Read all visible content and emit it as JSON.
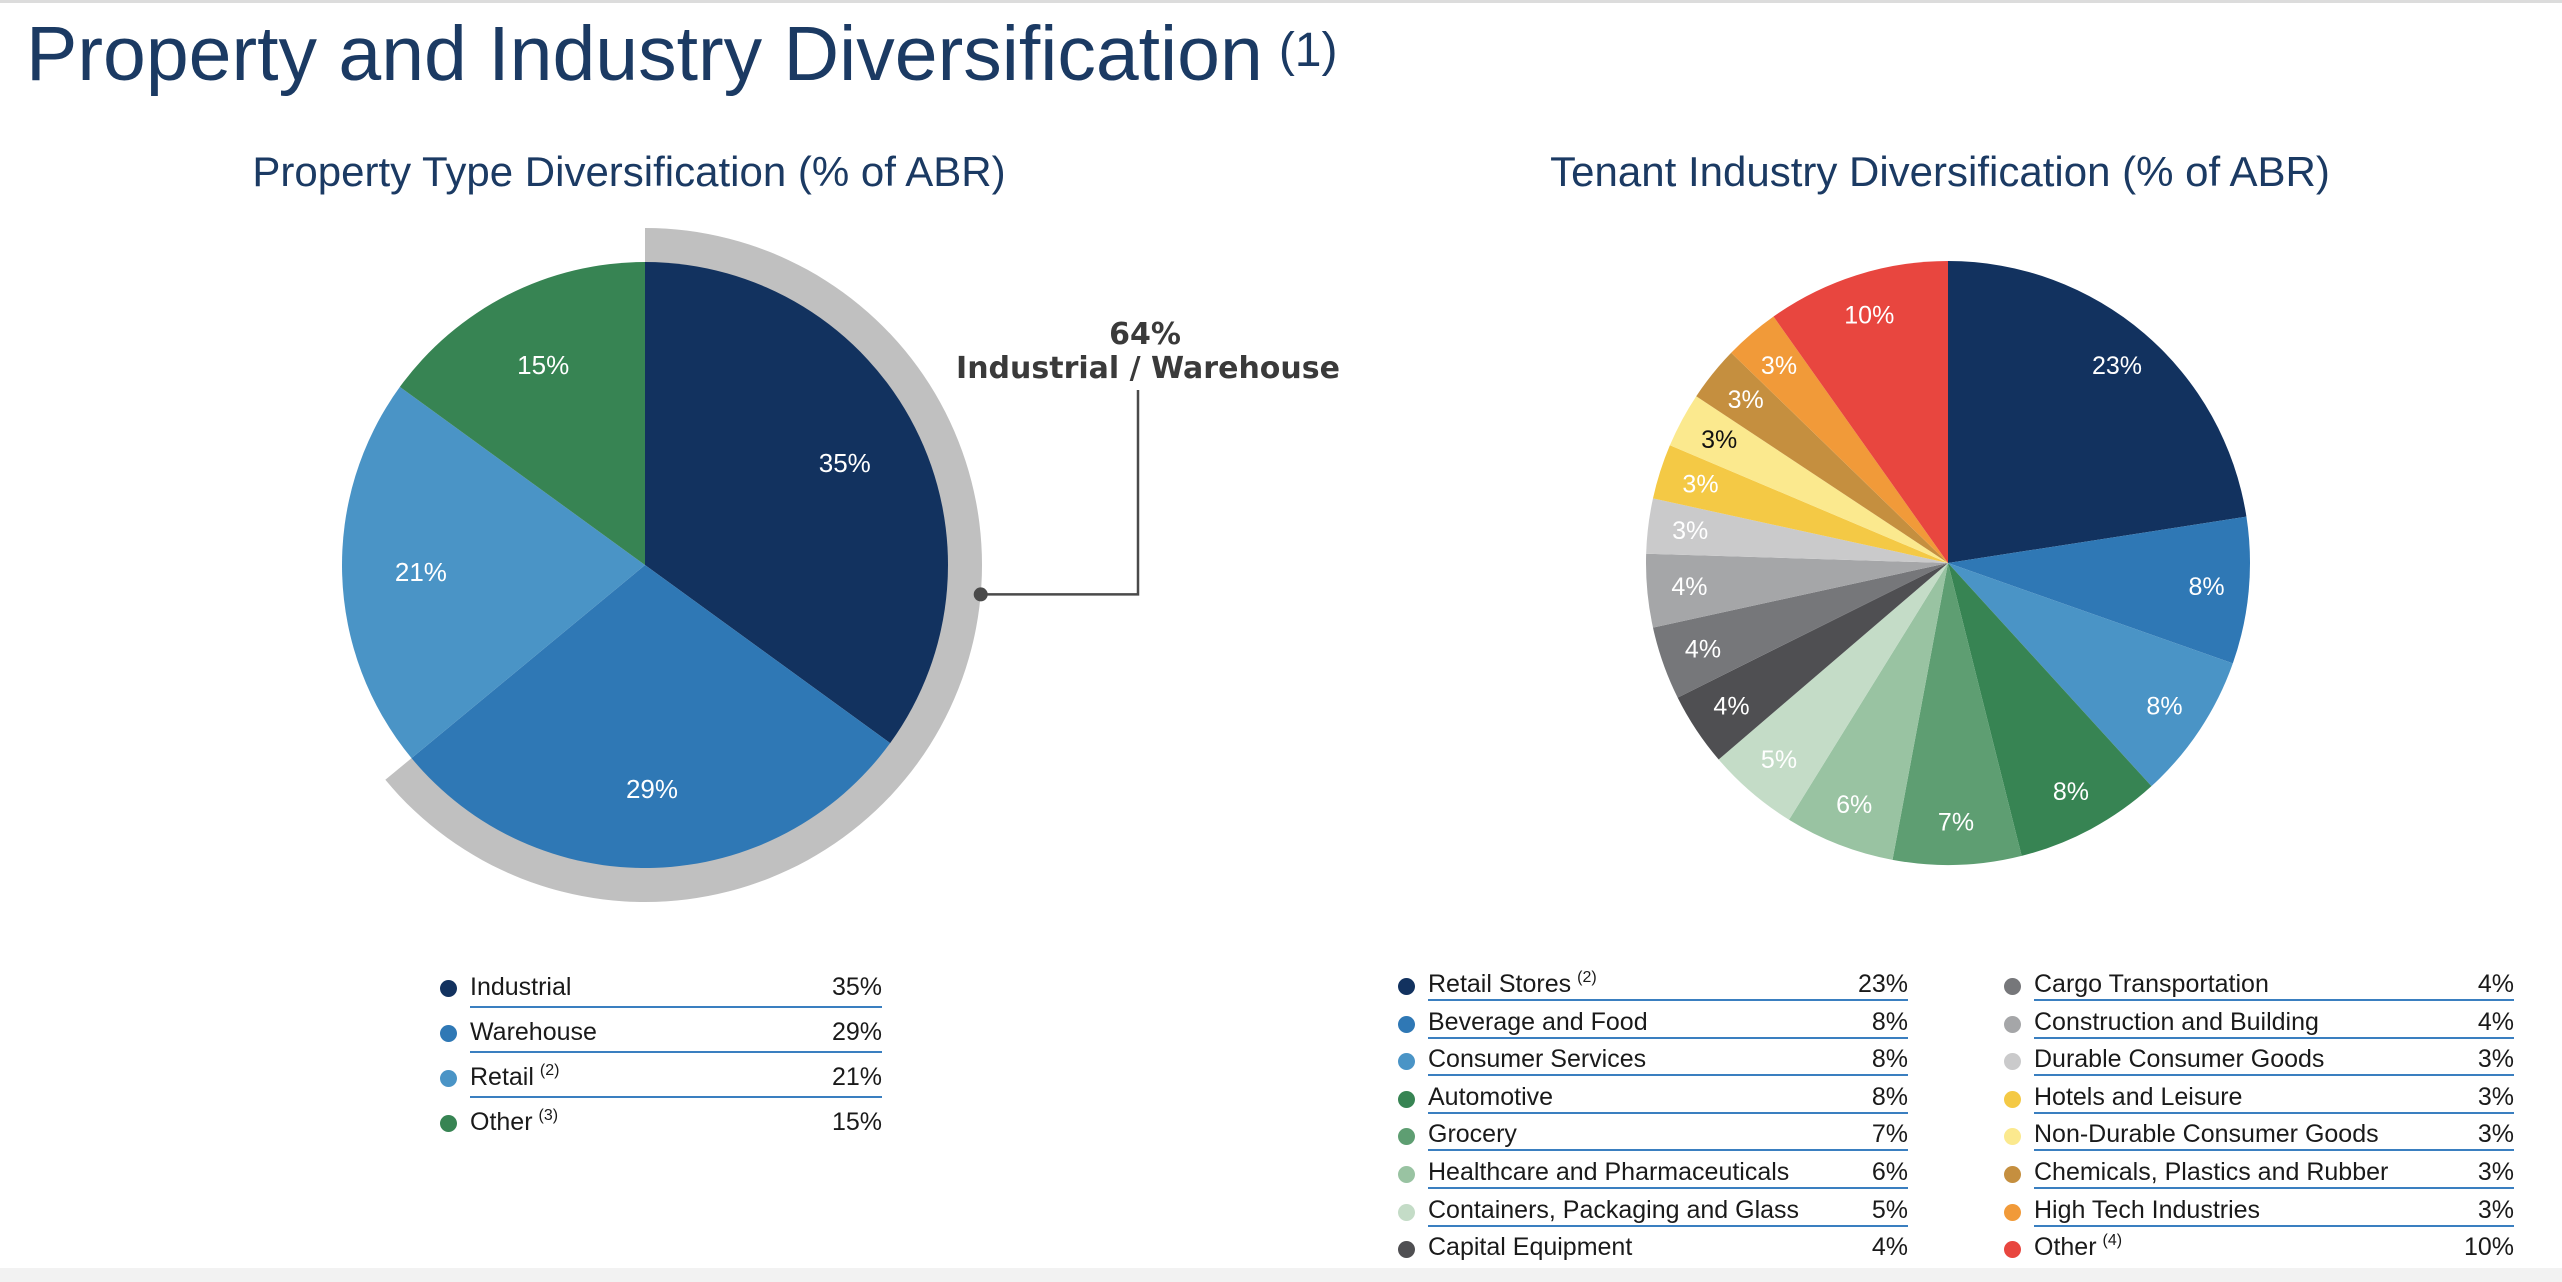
{
  "page": {
    "title": "Property and Industry Diversification",
    "title_note": "(1)"
  },
  "chart_data": [
    {
      "type": "pie",
      "title": "Property Type Diversification (% of ABR)",
      "unit": "% of ABR",
      "categories": [
        "Industrial",
        "Warehouse",
        "Retail",
        "Other"
      ],
      "values": [
        35,
        29,
        21,
        15
      ],
      "labels": [
        "35%",
        "29%",
        "21%",
        "15%"
      ],
      "colors": [
        "#12325f",
        "#2f78b5",
        "#4a94c6",
        "#378453"
      ],
      "legend": [
        {
          "name": "Industrial",
          "note": "",
          "value": "35%"
        },
        {
          "name": "Warehouse",
          "note": "",
          "value": "29%"
        },
        {
          "name": "Retail",
          "note": "(2)",
          "value": "21%"
        },
        {
          "name": "Other",
          "note": "(3)",
          "value": "15%"
        }
      ],
      "callout": {
        "value": "64%",
        "label": "Industrial / Warehouse"
      }
    },
    {
      "type": "pie",
      "title": "Tenant Industry Diversification (% of ABR)",
      "unit": "% of ABR",
      "categories": [
        "Retail Stores",
        "Beverage and Food",
        "Consumer Services",
        "Automotive",
        "Grocery",
        "Healthcare and Pharmaceuticals",
        "Containers, Packaging and Glass",
        "Capital Equipment",
        "Cargo Transportation",
        "Construction and Building",
        "Durable Consumer Goods",
        "Hotels and Leisure",
        "Non-Durable Consumer Goods",
        "Chemicals, Plastics and Rubber",
        "High Tech Industries",
        "Other"
      ],
      "values": [
        23,
        8,
        8,
        8,
        7,
        6,
        5,
        4,
        4,
        4,
        3,
        3,
        3,
        3,
        3,
        10
      ],
      "labels": [
        "23%",
        "8%",
        "8%",
        "8%",
        "7%",
        "6%",
        "5%",
        "4%",
        "4%",
        "4%",
        "3%",
        "3%",
        "3%",
        "3%",
        "3%",
        "10%"
      ],
      "colors": [
        "#12325f",
        "#2f78b5",
        "#4a94c6",
        "#378453",
        "#5e9e72",
        "#99c3a2",
        "#c4dcc7",
        "#4f4f52",
        "#76777a",
        "#a5a6a8",
        "#cacacb",
        "#f4c945",
        "#fbe98e",
        "#c58f3f",
        "#f19a39",
        "#e8463f"
      ],
      "label_colors": [
        "#ffffff",
        "#ffffff",
        "#ffffff",
        "#ffffff",
        "#ffffff",
        "#ffffff",
        "#ffffff",
        "#ffffff",
        "#ffffff",
        "#ffffff",
        "#ffffff",
        "#ffffff",
        "#111111",
        "#ffffff",
        "#ffffff",
        "#ffffff"
      ],
      "legend": [
        {
          "name": "Retail Stores",
          "note": "(2)",
          "value": "23%"
        },
        {
          "name": "Beverage and Food",
          "note": "",
          "value": "8%"
        },
        {
          "name": "Consumer Services",
          "note": "",
          "value": "8%"
        },
        {
          "name": "Automotive",
          "note": "",
          "value": "8%"
        },
        {
          "name": "Grocery",
          "note": "",
          "value": "7%"
        },
        {
          "name": "Healthcare and Pharmaceuticals",
          "note": "",
          "value": "6%"
        },
        {
          "name": "Containers, Packaging and Glass",
          "note": "",
          "value": "5%"
        },
        {
          "name": "Capital Equipment",
          "note": "",
          "value": "4%"
        },
        {
          "name": "Cargo Transportation",
          "note": "",
          "value": "4%"
        },
        {
          "name": "Construction and Building",
          "note": "",
          "value": "4%"
        },
        {
          "name": "Durable Consumer Goods",
          "note": "",
          "value": "3%"
        },
        {
          "name": "Hotels and Leisure",
          "note": "",
          "value": "3%"
        },
        {
          "name": "Non-Durable Consumer Goods",
          "note": "",
          "value": "3%"
        },
        {
          "name": "Chemicals, Plastics and Rubber",
          "note": "",
          "value": "3%"
        },
        {
          "name": "High Tech Industries",
          "note": "",
          "value": "3%"
        },
        {
          "name": "Other",
          "note": "(4)",
          "value": "10%"
        }
      ]
    }
  ]
}
